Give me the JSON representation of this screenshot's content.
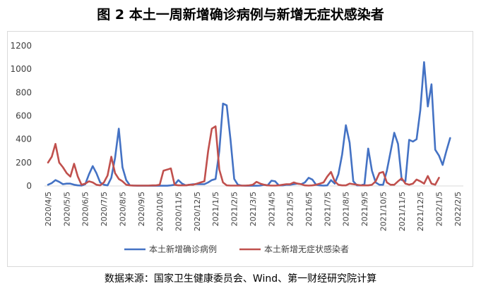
{
  "title": "图 2  本土一周新增确诊病例与新增无症状感染者",
  "source": "数据来源：国家卫生健康委员会、Wind、第一财经研究院计算",
  "chart_data": {
    "type": "line",
    "ylim": [
      0,
      1200
    ],
    "yticks": [
      0,
      200,
      400,
      600,
      800,
      1000,
      1200
    ],
    "grid": false,
    "legend_position": "bottom",
    "categories": [
      "2020/4/5",
      "2020/5/5",
      "2020/6/5",
      "2020/7/5",
      "2020/8/5",
      "2020/9/5",
      "2020/10/5",
      "2020/11/5",
      "2020/12/5",
      "2021/1/5",
      "2021/2/5",
      "2021/3/5",
      "2021/4/5",
      "2021/5/5",
      "2021/6/5",
      "2021/7/5",
      "2021/8/5",
      "2021/9/5",
      "2021/10/5",
      "2021/11/5",
      "2021/12/5",
      "2022/1/5",
      "2022/2/5"
    ],
    "series": [
      {
        "name": "本土新增确诊病例",
        "color": "#4472c4",
        "points": [
          [
            0,
            10
          ],
          [
            0.2,
            25
          ],
          [
            0.4,
            50
          ],
          [
            0.6,
            35
          ],
          [
            0.8,
            15
          ],
          [
            1.0,
            20
          ],
          [
            1.2,
            20
          ],
          [
            1.4,
            10
          ],
          [
            1.6,
            5
          ],
          [
            1.8,
            3
          ],
          [
            2.0,
            15
          ],
          [
            2.2,
            100
          ],
          [
            2.4,
            170
          ],
          [
            2.6,
            110
          ],
          [
            2.8,
            30
          ],
          [
            3.0,
            10
          ],
          [
            3.2,
            5
          ],
          [
            3.4,
            70
          ],
          [
            3.6,
            240
          ],
          [
            3.8,
            490
          ],
          [
            4.0,
            160
          ],
          [
            4.2,
            50
          ],
          [
            4.4,
            5
          ],
          [
            4.6,
            3
          ],
          [
            4.8,
            2
          ],
          [
            5.0,
            2
          ],
          [
            5.2,
            2
          ],
          [
            5.4,
            2
          ],
          [
            5.6,
            2
          ],
          [
            5.8,
            2
          ],
          [
            6.0,
            2
          ],
          [
            6.2,
            2
          ],
          [
            6.4,
            2
          ],
          [
            6.6,
            5
          ],
          [
            6.8,
            10
          ],
          [
            7.0,
            50
          ],
          [
            7.2,
            20
          ],
          [
            7.4,
            5
          ],
          [
            7.6,
            10
          ],
          [
            7.8,
            15
          ],
          [
            8.0,
            15
          ],
          [
            8.2,
            15
          ],
          [
            8.4,
            15
          ],
          [
            8.6,
            30
          ],
          [
            8.8,
            50
          ],
          [
            9.0,
            60
          ],
          [
            9.2,
            300
          ],
          [
            9.4,
            705
          ],
          [
            9.6,
            690
          ],
          [
            9.8,
            400
          ],
          [
            10.0,
            60
          ],
          [
            10.2,
            10
          ],
          [
            10.4,
            3
          ],
          [
            10.6,
            2
          ],
          [
            10.8,
            2
          ],
          [
            11.0,
            2
          ],
          [
            11.2,
            2
          ],
          [
            11.4,
            3
          ],
          [
            11.6,
            10
          ],
          [
            11.8,
            5
          ],
          [
            12.0,
            45
          ],
          [
            12.2,
            40
          ],
          [
            12.4,
            5
          ],
          [
            12.6,
            5
          ],
          [
            12.8,
            10
          ],
          [
            13.0,
            10
          ],
          [
            13.2,
            15
          ],
          [
            13.4,
            20
          ],
          [
            13.6,
            15
          ],
          [
            13.8,
            30
          ],
          [
            14.0,
            70
          ],
          [
            14.2,
            55
          ],
          [
            14.4,
            10
          ],
          [
            14.6,
            5
          ],
          [
            14.8,
            3
          ],
          [
            15.0,
            5
          ],
          [
            15.2,
            50
          ],
          [
            15.4,
            20
          ],
          [
            15.6,
            100
          ],
          [
            15.8,
            270
          ],
          [
            16.0,
            520
          ],
          [
            16.2,
            370
          ],
          [
            16.4,
            40
          ],
          [
            16.6,
            5
          ],
          [
            16.8,
            5
          ],
          [
            17.0,
            15
          ],
          [
            17.2,
            320
          ],
          [
            17.4,
            130
          ],
          [
            17.6,
            30
          ],
          [
            17.8,
            10
          ],
          [
            18.0,
            10
          ],
          [
            18.2,
            130
          ],
          [
            18.4,
            290
          ],
          [
            18.6,
            455
          ],
          [
            18.8,
            360
          ],
          [
            19.0,
            50
          ],
          [
            19.2,
            40
          ],
          [
            19.4,
            395
          ],
          [
            19.6,
            380
          ],
          [
            19.8,
            400
          ],
          [
            20.0,
            650
          ],
          [
            20.2,
            1060
          ],
          [
            20.4,
            680
          ],
          [
            20.6,
            870
          ],
          [
            20.8,
            310
          ],
          [
            21.0,
            260
          ],
          [
            21.2,
            180
          ],
          [
            21.4,
            300
          ],
          [
            21.6,
            410
          ]
        ]
      },
      {
        "name": "本土新增无症状感染者",
        "color": "#c0504d",
        "points": [
          [
            0,
            200
          ],
          [
            0.2,
            250
          ],
          [
            0.4,
            360
          ],
          [
            0.6,
            200
          ],
          [
            0.8,
            160
          ],
          [
            1.0,
            110
          ],
          [
            1.2,
            80
          ],
          [
            1.4,
            190
          ],
          [
            1.6,
            80
          ],
          [
            1.8,
            10
          ],
          [
            2.0,
            20
          ],
          [
            2.2,
            40
          ],
          [
            2.4,
            30
          ],
          [
            2.6,
            10
          ],
          [
            2.8,
            5
          ],
          [
            3.0,
            30
          ],
          [
            3.2,
            90
          ],
          [
            3.4,
            250
          ],
          [
            3.6,
            110
          ],
          [
            3.8,
            60
          ],
          [
            4.0,
            40
          ],
          [
            4.2,
            10
          ],
          [
            4.4,
            5
          ],
          [
            4.6,
            3
          ],
          [
            4.8,
            3
          ],
          [
            5.0,
            3
          ],
          [
            5.2,
            3
          ],
          [
            5.4,
            3
          ],
          [
            5.6,
            5
          ],
          [
            5.8,
            5
          ],
          [
            6.0,
            10
          ],
          [
            6.2,
            130
          ],
          [
            6.4,
            140
          ],
          [
            6.6,
            150
          ],
          [
            6.8,
            10
          ],
          [
            7.0,
            5
          ],
          [
            7.2,
            5
          ],
          [
            7.4,
            5
          ],
          [
            7.6,
            10
          ],
          [
            7.8,
            10
          ],
          [
            8.0,
            20
          ],
          [
            8.2,
            30
          ],
          [
            8.4,
            40
          ],
          [
            8.6,
            300
          ],
          [
            8.8,
            490
          ],
          [
            9.0,
            510
          ],
          [
            9.2,
            140
          ],
          [
            9.4,
            30
          ],
          [
            9.6,
            5
          ],
          [
            9.8,
            3
          ],
          [
            10.0,
            3
          ],
          [
            10.2,
            3
          ],
          [
            10.4,
            3
          ],
          [
            10.6,
            3
          ],
          [
            10.8,
            5
          ],
          [
            11.0,
            10
          ],
          [
            11.2,
            35
          ],
          [
            11.4,
            20
          ],
          [
            11.6,
            10
          ],
          [
            11.8,
            5
          ],
          [
            12.0,
            3
          ],
          [
            12.2,
            3
          ],
          [
            12.4,
            5
          ],
          [
            12.6,
            10
          ],
          [
            12.8,
            15
          ],
          [
            13.0,
            15
          ],
          [
            13.2,
            30
          ],
          [
            13.4,
            20
          ],
          [
            13.6,
            15
          ],
          [
            13.8,
            5
          ],
          [
            14.0,
            3
          ],
          [
            14.2,
            5
          ],
          [
            14.4,
            10
          ],
          [
            14.6,
            20
          ],
          [
            14.8,
            30
          ],
          [
            15.0,
            80
          ],
          [
            15.2,
            120
          ],
          [
            15.4,
            40
          ],
          [
            15.6,
            10
          ],
          [
            15.8,
            5
          ],
          [
            16.0,
            5
          ],
          [
            16.2,
            20
          ],
          [
            16.4,
            15
          ],
          [
            16.6,
            10
          ],
          [
            16.8,
            5
          ],
          [
            17.0,
            5
          ],
          [
            17.2,
            5
          ],
          [
            17.4,
            10
          ],
          [
            17.6,
            40
          ],
          [
            17.8,
            110
          ],
          [
            18.0,
            120
          ],
          [
            18.2,
            30
          ],
          [
            18.4,
            10
          ],
          [
            18.6,
            10
          ],
          [
            18.8,
            40
          ],
          [
            19.0,
            65
          ],
          [
            19.2,
            20
          ],
          [
            19.4,
            10
          ],
          [
            19.6,
            20
          ],
          [
            19.8,
            55
          ],
          [
            20.0,
            40
          ],
          [
            20.2,
            20
          ],
          [
            20.4,
            85
          ],
          [
            20.6,
            20
          ],
          [
            20.8,
            10
          ],
          [
            21.0,
            70
          ]
        ]
      }
    ]
  }
}
